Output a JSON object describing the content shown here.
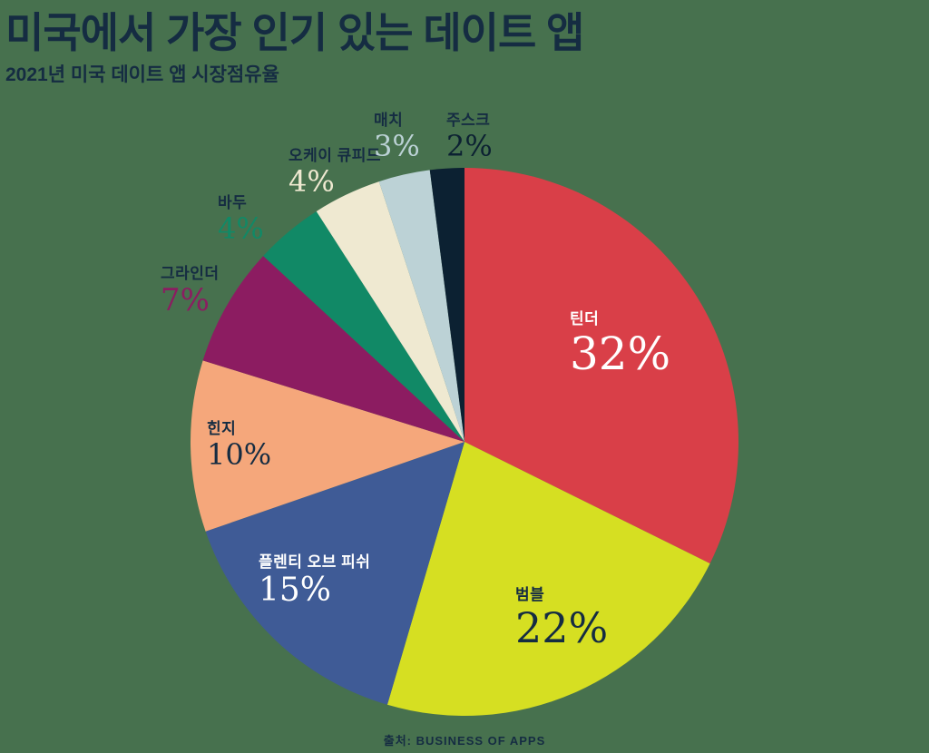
{
  "page": {
    "background_color": "#47714E",
    "text_color": "#152C42"
  },
  "chart_data": {
    "type": "pie",
    "title": "미국에서 가장 인기 있는 데이트 앱",
    "subtitle": "2021년 미국 데이트 앱 시장점유율",
    "source": "출처: BUSINESS OF APPS",
    "unit": "%",
    "legend_position": "labels-on-and-around-slices",
    "slices": [
      {
        "id": "tinder",
        "label": "틴더",
        "value": 32,
        "display_value": "32%",
        "color": "#D93F48",
        "label_placement": "inside",
        "label_color": "#FFFFFF",
        "value_color": "#FFFFFF"
      },
      {
        "id": "bumble",
        "label": "범블",
        "value": 22,
        "display_value": "22%",
        "color": "#D6DF22",
        "label_placement": "inside",
        "label_color": "#152C42",
        "value_color": "#152C42"
      },
      {
        "id": "plenty-of-fish",
        "label": "플렌티 오브 피쉬",
        "value": 15,
        "display_value": "15%",
        "color": "#3F5B96",
        "label_placement": "inside",
        "label_color": "#FFFFFF",
        "value_color": "#FFFFFF"
      },
      {
        "id": "hinge",
        "label": "힌지",
        "value": 10,
        "display_value": "10%",
        "color": "#F5A77B",
        "label_placement": "inside",
        "label_color": "#152C42",
        "value_color": "#152C42"
      },
      {
        "id": "grindr",
        "label": "그라인더",
        "value": 7,
        "display_value": "7%",
        "color": "#8C1C61",
        "label_placement": "outside",
        "label_color": "#152C42",
        "value_color": "#8C1C61"
      },
      {
        "id": "badoo",
        "label": "바두",
        "value": 4,
        "display_value": "4%",
        "color": "#118966",
        "label_placement": "outside",
        "label_color": "#152C42",
        "value_color": "#118966"
      },
      {
        "id": "okcupid",
        "label": "오케이 큐피드",
        "value": 4,
        "display_value": "4%",
        "color": "#EFE9D1",
        "label_placement": "outside",
        "label_color": "#152C42",
        "value_color": "#EFE9D1"
      },
      {
        "id": "match",
        "label": "매치",
        "value": 3,
        "display_value": "3%",
        "color": "#BCD2D6",
        "label_placement": "outside",
        "label_color": "#152C42",
        "value_color": "#BCD2D6"
      },
      {
        "id": "zoosk",
        "label": "주스크",
        "value": 2,
        "display_value": "2%",
        "color": "#0C2132",
        "label_placement": "outside",
        "label_color": "#152C42",
        "value_color": "#0C2132"
      }
    ]
  }
}
